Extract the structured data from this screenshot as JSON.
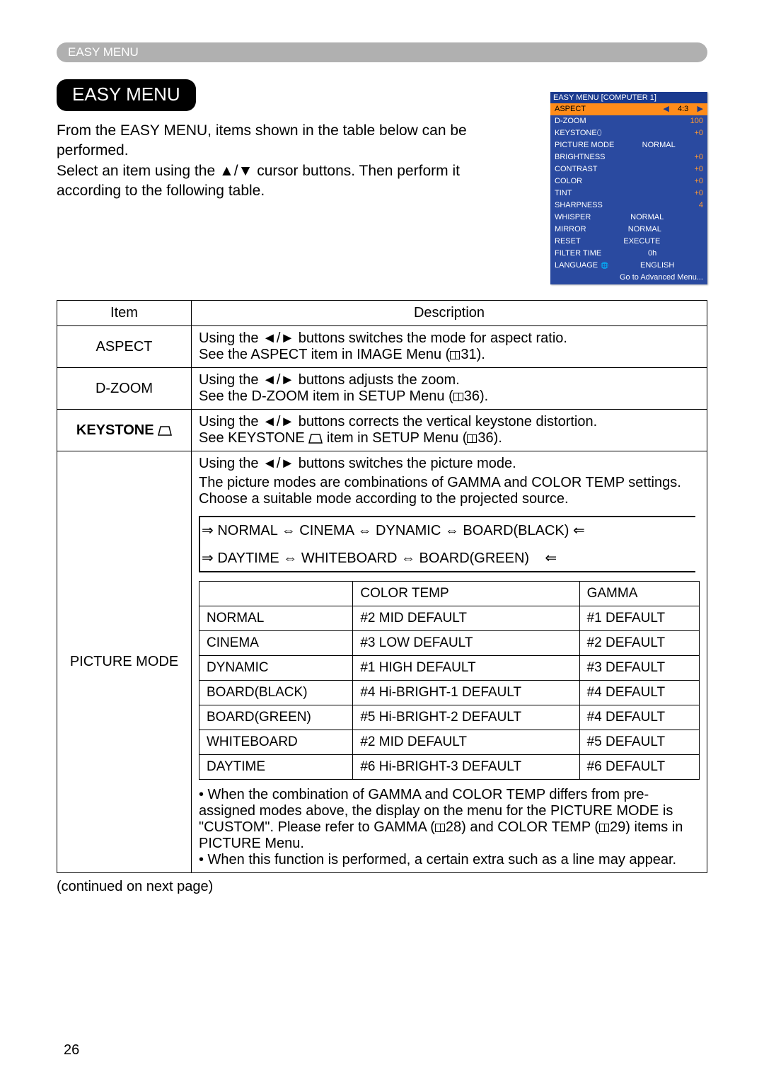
{
  "header_bar_text": "EASY MENU",
  "title_pill": "EASY MENU",
  "intro_line1": "From the EASY MENU, items shown in the table below can be performed.",
  "intro_line2": "Select an item using the ▲/▼ cursor buttons. Then perform it according to the following table.",
  "osd": {
    "title": "EASY MENU [COMPUTER 1]",
    "rows": [
      {
        "label": "ASPECT",
        "value": "4:3",
        "highlight": true,
        "arrows": true
      },
      {
        "label": "D-ZOOM",
        "value": "100",
        "orange": true
      },
      {
        "label": "KEYSTONE⬯",
        "value": "+0",
        "orange": true
      },
      {
        "label": "PICTURE MODE",
        "value": "NORMAL",
        "center": true
      },
      {
        "label": "BRIGHTNESS",
        "value": "+0",
        "orange": true
      },
      {
        "label": "CONTRAST",
        "value": "+0",
        "orange": true
      },
      {
        "label": "COLOR",
        "value": "+0",
        "orange": true
      },
      {
        "label": "TINT",
        "value": "+0",
        "orange": true
      },
      {
        "label": "SHARPNESS",
        "value": "4",
        "orange": true
      },
      {
        "label": "WHISPER",
        "value": "NORMAL",
        "center": true
      },
      {
        "label": "MIRROR",
        "value": "NORMAL",
        "center": true
      },
      {
        "label": "RESET",
        "value": "EXECUTE",
        "center": true
      },
      {
        "label": "FILTER TIME",
        "value": "0h",
        "center": true
      },
      {
        "label": "LANGUAGE",
        "value": "ENGLISH",
        "center": true,
        "globe": true
      }
    ],
    "footer": "Go to Advanced Menu..."
  },
  "table_header_item": "Item",
  "table_header_desc": "Description",
  "rows": {
    "aspect": {
      "item": "ASPECT",
      "l1": "Using the ◄/► buttons switches the mode for aspect ratio.",
      "l2a": "See the ASPECT item in IMAGE Menu (",
      "l2b": "31)."
    },
    "dzoom": {
      "item": "D-ZOOM",
      "l1": "Using the ◄/► buttons adjusts the zoom.",
      "l2a": "See the D-ZOOM item in SETUP Menu (",
      "l2b": "36)."
    },
    "keystone": {
      "item": "KEYSTONE",
      "l1": "Using the ◄/► buttons corrects the vertical keystone distortion.",
      "l2a": "See KEYSTONE ",
      "l2b": " item in SETUP Menu (",
      "l2c": "36)."
    },
    "picture": {
      "item": "PICTURE MODE",
      "l1": "Using the ◄/► buttons switches the picture mode.",
      "l2": "The picture modes are combinations of GAMMA and COLOR TEMP settings. Choose a suitable mode according to the projected source.",
      "cycle1": "NORMAL ⇔ CINEMA ⇔ DYNAMIC ⇔ BOARD(BLACK)",
      "cycle2": "DAYTIME ⇔ WHITEBOARD ⇔ BOARD(GREEN)",
      "inner_hdr": [
        "",
        "COLOR TEMP",
        "GAMMA"
      ],
      "inner": [
        [
          "NORMAL",
          "#2 MID DEFAULT",
          "#1 DEFAULT"
        ],
        [
          "CINEMA",
          "#3 LOW DEFAULT",
          "#2 DEFAULT"
        ],
        [
          "DYNAMIC",
          "#1 HIGH DEFAULT",
          "#3 DEFAULT"
        ],
        [
          "BOARD(BLACK)",
          "#4 Hi-BRIGHT-1 DEFAULT",
          "#4 DEFAULT"
        ],
        [
          "BOARD(GREEN)",
          "#5 Hi-BRIGHT-2 DEFAULT",
          "#4 DEFAULT"
        ],
        [
          "WHITEBOARD",
          "#2 MID DEFAULT",
          "#5 DEFAULT"
        ],
        [
          "DAYTIME",
          "#6 Hi-BRIGHT-3 DEFAULT",
          "#6 DEFAULT"
        ]
      ],
      "note1a": "• When the combination of GAMMA and COLOR TEMP differs from pre-assigned modes above, the display on the menu for the PICTURE MODE is \"CUSTOM\". Please refer to GAMMA (",
      "note1b": "28) and COLOR TEMP (",
      "note1c": "29) items in PICTURE Menu.",
      "note2": "• When this function is performed, a certain extra such as a line may appear."
    }
  },
  "continued": "(continued on next page)",
  "page_number": "26"
}
